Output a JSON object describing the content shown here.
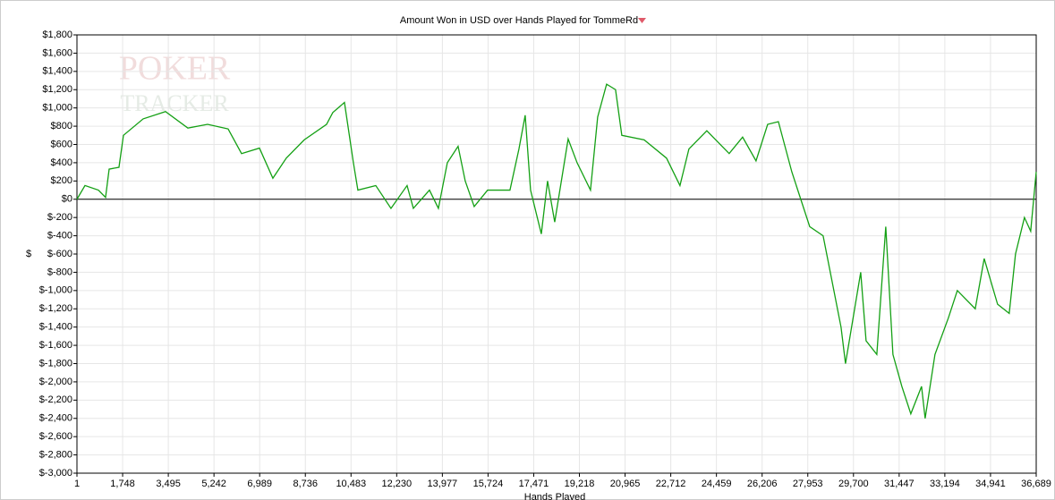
{
  "chart_data": {
    "type": "line",
    "title": "Amount Won in USD over Hands Played for TommeRd",
    "watermark": [
      "POKER",
      "TRACKER"
    ],
    "x_label": "Hands Played",
    "y_label": "$",
    "xlim": [
      1,
      36689
    ],
    "xticks": [
      1,
      {
        "value": 1748,
        "label": "1,748"
      },
      {
        "value": 3495,
        "label": "3,495"
      },
      {
        "value": 5242,
        "label": "5,242"
      },
      {
        "value": 6989,
        "label": "6,989"
      },
      {
        "value": 8736,
        "label": "8,736"
      },
      {
        "value": 10483,
        "label": "10,483"
      },
      {
        "value": 12230,
        "label": "12,230"
      },
      {
        "value": 13977,
        "label": "13,977"
      },
      {
        "value": 15724,
        "label": "15,724"
      },
      {
        "value": 17471,
        "label": "17,471"
      },
      {
        "value": 19218,
        "label": "19,218"
      },
      {
        "value": 20965,
        "label": "20,965"
      },
      {
        "value": 22712,
        "label": "22,712"
      },
      {
        "value": 24459,
        "label": "24,459"
      },
      {
        "value": 26206,
        "label": "26,206"
      },
      {
        "value": 27953,
        "label": "27,953"
      },
      {
        "value": 29700,
        "label": "29,700"
      },
      {
        "value": 31447,
        "label": "31,447"
      },
      {
        "value": 33194,
        "label": "33,194"
      },
      {
        "value": 34941,
        "label": "34,941"
      },
      {
        "value": 36689,
        "label": "36,689"
      }
    ],
    "ylim": [
      -3000,
      1800
    ],
    "yticks": [
      {
        "value": 1800,
        "label": "$1,800"
      },
      {
        "value": 1600,
        "label": "$1,600"
      },
      {
        "value": 1400,
        "label": "$1,400"
      },
      {
        "value": 1200,
        "label": "$1,200"
      },
      {
        "value": 1000,
        "label": "$1,000"
      },
      {
        "value": 800,
        "label": "$800"
      },
      {
        "value": 600,
        "label": "$600"
      },
      {
        "value": 400,
        "label": "$400"
      },
      {
        "value": 200,
        "label": "$200"
      },
      {
        "value": 0,
        "label": "$0"
      },
      {
        "value": -200,
        "label": "$-200"
      },
      {
        "value": -400,
        "label": "$-400"
      },
      {
        "value": -600,
        "label": "$-600"
      },
      {
        "value": -800,
        "label": "$-800"
      },
      {
        "value": -1000,
        "label": "$-1,000"
      },
      {
        "value": -1200,
        "label": "$-1,200"
      },
      {
        "value": -1400,
        "label": "$-1,400"
      },
      {
        "value": -1600,
        "label": "$-1,600"
      },
      {
        "value": -1800,
        "label": "$-1,800"
      },
      {
        "value": -2000,
        "label": "$-2,000"
      },
      {
        "value": -2200,
        "label": "$-2,200"
      },
      {
        "value": -2400,
        "label": "$-2,400"
      },
      {
        "value": -2600,
        "label": "$-2,600"
      },
      {
        "value": -2800,
        "label": "$-2,800"
      },
      {
        "value": -3000,
        "label": "$-3,000"
      }
    ],
    "grid": true,
    "series": [
      {
        "color": "#14a014",
        "x": [
          1,
          308,
          821,
          1095,
          1232,
          1608,
          1779,
          2532,
          3388,
          4243,
          4996,
          5783,
          6296,
          6981,
          7494,
          8007,
          8692,
          9547,
          9787,
          10232,
          10574,
          10745,
          11429,
          12011,
          12627,
          12867,
          13483,
          13825,
          14167,
          14578,
          14851,
          15194,
          15707,
          16562,
          16905,
          17144,
          17350,
          17761,
          18000,
          18274,
          18787,
          19129,
          19642,
          19916,
          20258,
          20600,
          20840,
          21695,
          22551,
          23064,
          23406,
          24091,
          24946,
          25460,
          25973,
          26418,
          26828,
          27342,
          27684,
          28026,
          28539,
          28882,
          29224,
          29395,
          29977,
          30182,
          30593,
          30935,
          31209,
          31551,
          31893,
          32304,
          32441,
          32817,
          33330,
          33672,
          34357,
          34699,
          35212,
          35657,
          35897,
          36239,
          36478,
          36689
        ],
        "values": [
          0,
          150,
          100,
          20,
          330,
          350,
          700,
          880,
          960,
          780,
          820,
          770,
          500,
          560,
          230,
          450,
          650,
          820,
          950,
          1060,
          400,
          100,
          150,
          -100,
          150,
          -100,
          100,
          -100,
          400,
          580,
          200,
          -80,
          100,
          100,
          550,
          920,
          100,
          -380,
          200,
          -250,
          660,
          400,
          100,
          900,
          1260,
          1200,
          700,
          650,
          450,
          150,
          550,
          750,
          500,
          680,
          420,
          820,
          850,
          300,
          0,
          -300,
          -400,
          -900,
          -1400,
          -1800,
          -800,
          -1550,
          -1700,
          -300,
          -1700,
          -2050,
          -2350,
          -2050,
          -2400,
          -1700,
          -1300,
          -1000,
          -1200,
          -650,
          -1150,
          -1250,
          -600,
          -200,
          -350,
          300
        ]
      }
    ]
  }
}
